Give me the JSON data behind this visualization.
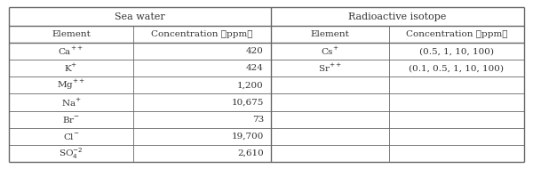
{
  "seawater_header": "Sea water",
  "radioactive_header": "Radioactive isotope",
  "sub_col_headers": [
    "Element",
    "Concentration （ppm）",
    "Element",
    "Concentration （ppm）"
  ],
  "seawater_elements": [
    "Ca$^{++}$",
    "K$^{+}$",
    "Mg$^{++}$",
    "Na$^{+}$",
    "Br$^{-}$",
    "Cl$^{-}$",
    "SO$_4^{-2}$"
  ],
  "seawater_conc": [
    "420",
    "424",
    "1,200",
    "10,675",
    "73",
    "19,700",
    "2,610"
  ],
  "radioactive_elements": [
    "Cs$^{+}$",
    "Sr$^{++}$",
    "",
    "",
    "",
    "",
    ""
  ],
  "radioactive_conc": [
    "(0.5, 1, 10, 100)",
    "(0.1, 0.5, 1, 10, 100)",
    "",
    "",
    "",
    "",
    ""
  ],
  "bg_color": "#ffffff",
  "border_color": "#666666",
  "text_color": "#333333",
  "figsize": [
    6.0,
    1.9
  ],
  "dpi": 100
}
